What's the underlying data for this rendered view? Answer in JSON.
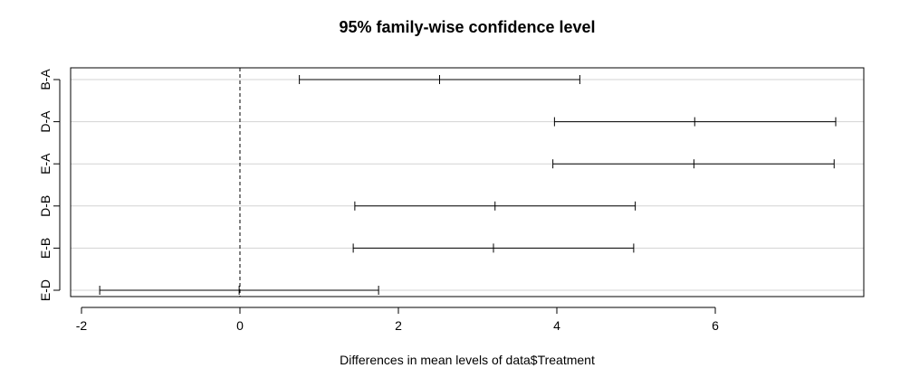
{
  "chart_data": {
    "type": "errorbar",
    "title": "95% family-wise confidence level",
    "xlabel": "Differences in mean levels of data$Treatment",
    "ylabel": "",
    "xlim": [
      -2.1,
      7.8
    ],
    "x_ticks": [
      -2,
      0,
      2,
      4,
      6
    ],
    "x_tick_labels": [
      "-2",
      "0",
      "2",
      "4",
      "6"
    ],
    "reference_line": {
      "x": 0,
      "style": "dashed"
    },
    "grid": "horizontal",
    "comparisons": [
      {
        "label": "B-A",
        "lower": 0.75,
        "estimate": 2.52,
        "upper": 4.29
      },
      {
        "label": "D-A",
        "lower": 3.97,
        "estimate": 5.74,
        "upper": 7.52
      },
      {
        "label": "E-A",
        "lower": 3.95,
        "estimate": 5.73,
        "upper": 7.5
      },
      {
        "label": "D-B",
        "lower": 1.45,
        "estimate": 3.22,
        "upper": 4.99
      },
      {
        "label": "E-B",
        "lower": 1.43,
        "estimate": 3.2,
        "upper": 4.97
      },
      {
        "label": "E-D",
        "lower": -1.77,
        "estimate": -0.01,
        "upper": 1.75
      }
    ]
  }
}
